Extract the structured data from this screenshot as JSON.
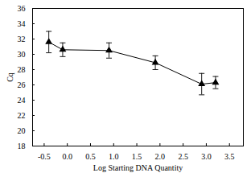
{
  "chart_data": {
    "type": "line",
    "x_label": "Log Starting DNA Quantity",
    "y_label": "Cq",
    "x": [
      -0.4,
      -0.1,
      0.9,
      1.9,
      2.9,
      3.2
    ],
    "values": [
      31.6,
      30.6,
      30.5,
      28.9,
      26.1,
      26.3
    ],
    "errors": [
      1.4,
      0.9,
      1.0,
      0.9,
      1.4,
      0.8
    ],
    "color": "#000000",
    "marker": "triangle",
    "line_style": "solid",
    "xlim": [
      -0.75,
      3.8
    ],
    "xticks": [
      -0.5,
      {
        "value": 0,
        "label": "0.0"
      },
      0.5,
      {
        "value": 1,
        "label": "1.0"
      },
      1.5,
      {
        "value": 2,
        "label": "2.0"
      },
      2.5,
      {
        "value": 3,
        "label": "3.0"
      },
      3.5
    ],
    "ylim": [
      18,
      36
    ],
    "yticks": [
      18,
      20,
      22,
      24,
      26,
      28,
      30,
      32,
      34,
      36
    ],
    "grid": false
  }
}
